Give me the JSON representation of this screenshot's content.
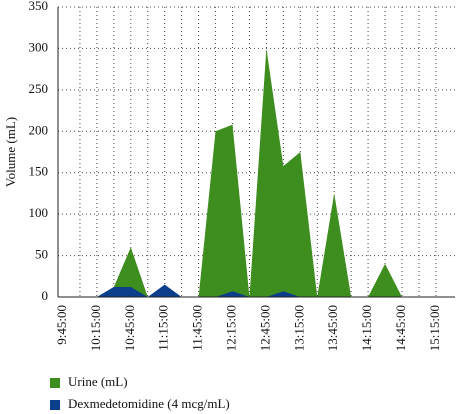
{
  "chart_data": {
    "type": "area",
    "ylabel": "Volume (mL)",
    "categories": [
      "9:45:00",
      null,
      "10:15:00",
      null,
      "10:45:00",
      null,
      "11:15:00",
      null,
      "11:45:00",
      null,
      "12:15:00",
      null,
      "12:45:00",
      null,
      "13:15:00",
      null,
      "13:45:00",
      null,
      "14:15:00",
      null,
      "14:45:00",
      null,
      "15:15:00"
    ],
    "series": [
      {
        "name": "Urine (mL)",
        "color": "#3e8e1f",
        "values": [
          0,
          0,
          0,
          12,
          60,
          0,
          0,
          0,
          0,
          200,
          208,
          0,
          300,
          158,
          175,
          0,
          125,
          0,
          0,
          40,
          0,
          0,
          0
        ]
      },
      {
        "name": "Dexmedetomidine (4 mcg/mL)",
        "color": "#0b3f8c",
        "values": [
          0,
          0,
          0,
          12,
          12,
          0,
          15,
          0,
          0,
          0,
          7,
          0,
          0,
          7,
          0,
          0,
          0,
          0,
          0,
          0,
          0,
          0,
          0
        ]
      }
    ],
    "ylim": [
      0,
      350
    ],
    "yticks": [
      0,
      50,
      100,
      150,
      200,
      250,
      300,
      350
    ],
    "grid": true,
    "legend": "bottom"
  }
}
